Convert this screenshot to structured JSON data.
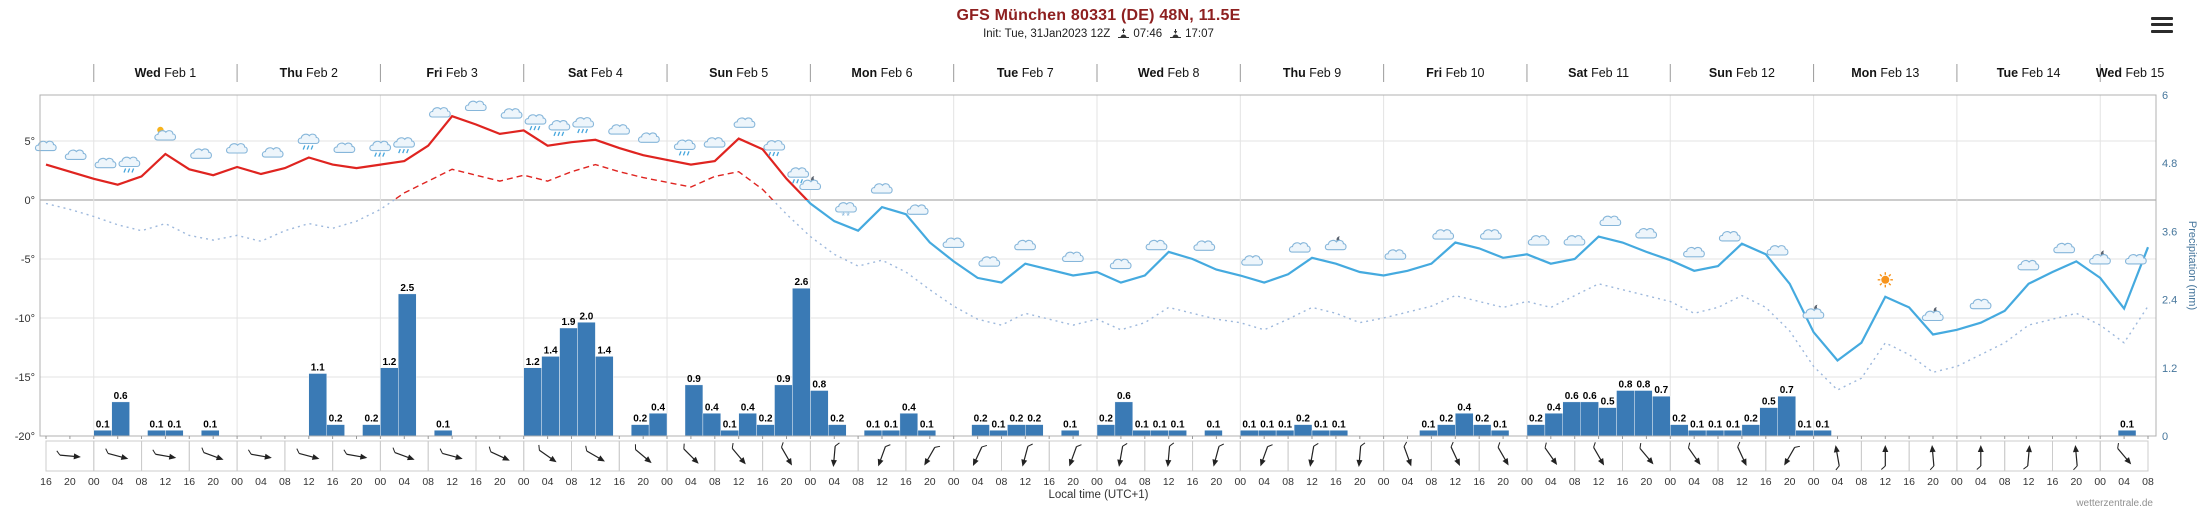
{
  "header": {
    "title": "GFS München 80331 (DE) 48N, 11.5E",
    "init_label": "Init: Tue, 31Jan2023 12Z",
    "sunrise_time": "07:46",
    "sunset_time": "17:07"
  },
  "footer": {
    "watermark": "wetterzentrale.de"
  },
  "chart_data": {
    "type": "line+bar",
    "title": "GFS München 80331 (DE) 48N, 11.5E",
    "xlabel": "Local time (UTC+1)",
    "x_start": "Tue 31 Jan 2023 16:00 local",
    "x_end": "Wed 15 Feb 2023 08:00 local",
    "x_total_hours": 352,
    "x_step_hours_lines": 4,
    "hour_label_cycle": [
      "16",
      "20",
      "00",
      "04",
      "08",
      "12"
    ],
    "days": [
      {
        "dow": "Wed",
        "date": "Feb 1"
      },
      {
        "dow": "Thu",
        "date": "Feb 2"
      },
      {
        "dow": "Fri",
        "date": "Feb 3"
      },
      {
        "dow": "Sat",
        "date": "Feb 4"
      },
      {
        "dow": "Sun",
        "date": "Feb 5"
      },
      {
        "dow": "Mon",
        "date": "Feb 6"
      },
      {
        "dow": "Tue",
        "date": "Feb 7"
      },
      {
        "dow": "Wed",
        "date": "Feb 8"
      },
      {
        "dow": "Thu",
        "date": "Feb 9"
      },
      {
        "dow": "Fri",
        "date": "Feb 10"
      },
      {
        "dow": "Sat",
        "date": "Feb 11"
      },
      {
        "dow": "Sun",
        "date": "Feb 12"
      },
      {
        "dow": "Mon",
        "date": "Feb 13"
      },
      {
        "dow": "Tue",
        "date": "Feb 14"
      },
      {
        "dow": "Wed",
        "date": "Feb 15"
      }
    ],
    "temp_axis": {
      "unit": "°",
      "ticks": [
        5,
        0,
        -5,
        -10,
        -15,
        -20
      ],
      "ylim": [
        -20,
        8.9
      ]
    },
    "precip_axis": {
      "label": "Precipitation (mm)",
      "ticks": [
        0,
        1.2,
        2.4,
        3.6,
        4.8,
        6
      ],
      "ylim": [
        0,
        6
      ]
    },
    "series": [
      {
        "name": "2m temperature (°C)",
        "style": "solid",
        "color_above_zero": "#df2420",
        "color_below_zero": "#45aadf",
        "values": [
          3.0,
          2.4,
          1.8,
          1.3,
          2.0,
          3.9,
          2.6,
          2.1,
          2.8,
          2.2,
          2.7,
          3.6,
          3.0,
          2.7,
          3.0,
          3.3,
          4.6,
          7.1,
          6.4,
          5.6,
          5.9,
          4.6,
          4.9,
          5.1,
          4.4,
          3.8,
          3.4,
          3.0,
          3.3,
          5.2,
          4.3,
          1.8,
          -0.3,
          -1.8,
          -2.6,
          -0.6,
          -1.2,
          -3.6,
          -5.2,
          -6.6,
          -7.0,
          -5.4,
          -5.9,
          -6.4,
          -6.1,
          -7.0,
          -6.4,
          -4.4,
          -5.0,
          -5.9,
          -6.4,
          -7.0,
          -6.3,
          -4.9,
          -5.4,
          -6.1,
          -6.4,
          -6.0,
          -5.4,
          -3.6,
          -4.1,
          -4.9,
          -4.6,
          -5.4,
          -5.0,
          -3.1,
          -3.6,
          -4.4,
          -5.1,
          -6.0,
          -5.6,
          -3.7,
          -4.6,
          -7.1,
          -11.2,
          -13.6,
          -12.1,
          -8.2,
          -9.1,
          -11.4,
          -11.0,
          -10.4,
          -9.4,
          -7.1,
          -6.1,
          -5.2,
          -6.6,
          -9.2,
          -4.0
        ]
      },
      {
        "name": "dewpoint (°C)",
        "style": "dashed",
        "color_above_zero": "#df2420",
        "color_below_zero": "#9db8dc",
        "values": [
          -0.3,
          -0.8,
          -1.4,
          -2.1,
          -2.6,
          -2.0,
          -3.0,
          -3.4,
          -3.0,
          -3.5,
          -2.6,
          -2.0,
          -2.4,
          -1.8,
          -0.8,
          0.6,
          1.6,
          2.6,
          2.1,
          1.6,
          2.1,
          1.6,
          2.4,
          3.0,
          2.4,
          1.9,
          1.5,
          1.1,
          2.0,
          2.4,
          0.9,
          -1.2,
          -3.1,
          -4.6,
          -5.6,
          -5.1,
          -6.1,
          -7.6,
          -9.0,
          -10.1,
          -10.6,
          -9.6,
          -10.1,
          -10.6,
          -10.1,
          -11.0,
          -10.4,
          -9.1,
          -9.6,
          -10.1,
          -10.4,
          -11.0,
          -10.1,
          -9.1,
          -9.6,
          -10.4,
          -10.0,
          -9.5,
          -9.0,
          -8.1,
          -8.6,
          -9.1,
          -8.6,
          -9.1,
          -8.1,
          -7.1,
          -7.6,
          -8.1,
          -8.6,
          -9.6,
          -9.1,
          -8.1,
          -9.1,
          -11.1,
          -14.1,
          -16.1,
          -15.1,
          -12.1,
          -13.1,
          -14.6,
          -14.1,
          -13.1,
          -12.1,
          -10.6,
          -10.1,
          -9.6,
          -10.6,
          -12.1,
          -9.0
        ]
      }
    ],
    "precip_bars": {
      "name": "Precipitation (mm)",
      "bar_hours": 3,
      "color": "#3a7ab5",
      "points": [
        [
          8,
          0.1
        ],
        [
          11,
          0.6
        ],
        [
          17,
          0.1
        ],
        [
          20,
          0.1
        ],
        [
          26,
          0.1
        ],
        [
          44,
          1.1
        ],
        [
          47,
          0.2
        ],
        [
          53,
          0.2
        ],
        [
          56,
          1.2
        ],
        [
          59,
          2.5
        ],
        [
          65,
          0.1
        ],
        [
          80,
          1.2
        ],
        [
          83,
          1.4
        ],
        [
          86,
          1.9
        ],
        [
          89,
          2.0
        ],
        [
          92,
          1.4
        ],
        [
          98,
          0.2
        ],
        [
          101,
          0.4
        ],
        [
          107,
          0.9
        ],
        [
          110,
          0.4
        ],
        [
          113,
          0.1
        ],
        [
          116,
          0.4
        ],
        [
          119,
          0.2
        ],
        [
          122,
          0.9
        ],
        [
          125,
          2.6
        ],
        [
          128,
          0.8
        ],
        [
          131,
          0.2
        ],
        [
          137,
          0.1
        ],
        [
          140,
          0.1
        ],
        [
          143,
          0.4
        ],
        [
          146,
          0.1
        ],
        [
          155,
          0.2
        ],
        [
          158,
          0.1
        ],
        [
          161,
          0.2
        ],
        [
          164,
          0.2
        ],
        [
          170,
          0.1
        ],
        [
          176,
          0.2
        ],
        [
          179,
          0.6
        ],
        [
          182,
          0.1
        ],
        [
          185,
          0.1
        ],
        [
          188,
          0.1
        ],
        [
          194,
          0.1
        ],
        [
          200,
          0.1
        ],
        [
          203,
          0.1
        ],
        [
          206,
          0.1
        ],
        [
          209,
          0.2
        ],
        [
          212,
          0.1
        ],
        [
          215,
          0.1
        ],
        [
          230,
          0.1
        ],
        [
          233,
          0.2
        ],
        [
          236,
          0.4
        ],
        [
          239,
          0.2
        ],
        [
          242,
          0.1
        ],
        [
          248,
          0.2
        ],
        [
          251,
          0.4
        ],
        [
          254,
          0.6
        ],
        [
          257,
          0.6
        ],
        [
          260,
          0.5
        ],
        [
          263,
          0.8
        ],
        [
          266,
          0.8
        ],
        [
          269,
          0.7
        ],
        [
          272,
          0.2
        ],
        [
          275,
          0.1
        ],
        [
          278,
          0.1
        ],
        [
          281,
          0.1
        ],
        [
          284,
          0.2
        ],
        [
          287,
          0.5
        ],
        [
          290,
          0.7
        ],
        [
          293,
          0.1
        ],
        [
          296,
          0.1
        ],
        [
          347,
          0.1
        ]
      ]
    },
    "weather_icons": [
      [
        0,
        "cloud"
      ],
      [
        5,
        "cloud"
      ],
      [
        10,
        "cloud"
      ],
      [
        14,
        "rain"
      ],
      [
        20,
        "suncloud"
      ],
      [
        26,
        "cloud"
      ],
      [
        32,
        "cloud"
      ],
      [
        38,
        "cloud"
      ],
      [
        44,
        "rain"
      ],
      [
        50,
        "cloud"
      ],
      [
        56,
        "rain"
      ],
      [
        60,
        "rain"
      ],
      [
        66,
        "cloud"
      ],
      [
        72,
        "cloud"
      ],
      [
        78,
        "cloud"
      ],
      [
        82,
        "rain"
      ],
      [
        86,
        "rain"
      ],
      [
        90,
        "rain"
      ],
      [
        96,
        "cloud"
      ],
      [
        101,
        "cloud"
      ],
      [
        107,
        "rain"
      ],
      [
        112,
        "cloud"
      ],
      [
        117,
        "cloud"
      ],
      [
        122,
        "rain"
      ],
      [
        126,
        "rain"
      ],
      [
        128,
        "mooncloud"
      ],
      [
        134,
        "snow"
      ],
      [
        140,
        "cloud"
      ],
      [
        146,
        "cloud"
      ],
      [
        152,
        "cloud"
      ],
      [
        158,
        "cloud"
      ],
      [
        164,
        "cloud"
      ],
      [
        172,
        "cloud"
      ],
      [
        180,
        "cloud"
      ],
      [
        186,
        "cloud"
      ],
      [
        194,
        "cloud"
      ],
      [
        202,
        "cloud"
      ],
      [
        210,
        "cloud"
      ],
      [
        216,
        "mooncloud"
      ],
      [
        226,
        "cloud"
      ],
      [
        234,
        "cloud"
      ],
      [
        242,
        "cloud"
      ],
      [
        250,
        "cloud"
      ],
      [
        256,
        "cloud"
      ],
      [
        262,
        "cloud"
      ],
      [
        268,
        "cloud"
      ],
      [
        276,
        "cloud"
      ],
      [
        282,
        "cloud"
      ],
      [
        290,
        "cloud"
      ],
      [
        296,
        "mooncloud"
      ],
      [
        308,
        "sun"
      ],
      [
        316,
        "mooncloud"
      ],
      [
        324,
        "cloud"
      ],
      [
        332,
        "cloud"
      ],
      [
        338,
        "cloud"
      ],
      [
        344,
        "mooncloud"
      ],
      [
        350,
        "cloud"
      ]
    ],
    "wind_arrows_deg": [
      5,
      15,
      10,
      20,
      10,
      15,
      10,
      20,
      15,
      25,
      35,
      30,
      40,
      45,
      50,
      60,
      95,
      110,
      120,
      115,
      105,
      110,
      100,
      95,
      105,
      110,
      100,
      95,
      70,
      65,
      60,
      55,
      60,
      50,
      55,
      65,
      120,
      -100,
      -90,
      -95,
      -90,
      -85,
      -95,
      50,
      45
    ]
  }
}
